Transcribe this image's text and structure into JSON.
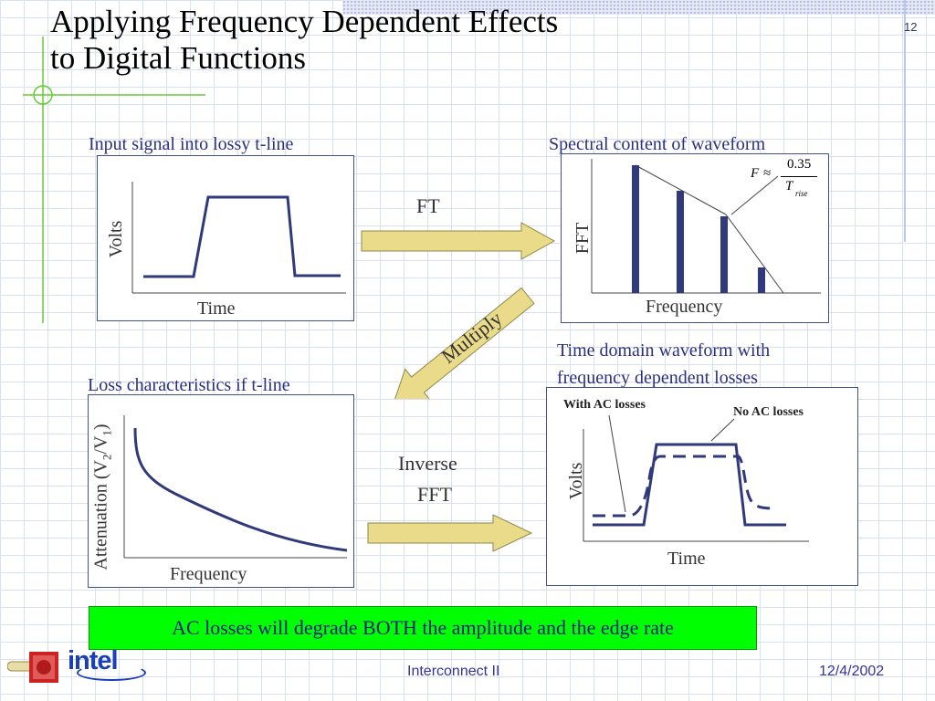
{
  "slide": {
    "title_line1": "Applying Frequency Dependent Effects",
    "title_line2": "to Digital Functions",
    "number": "12"
  },
  "panels": {
    "input": {
      "heading": "Input signal into lossy t-line",
      "xlabel": "Time",
      "ylabel": "Volts"
    },
    "spectrum": {
      "heading": "Spectral content of waveform",
      "xlabel": "Frequency",
      "ylabel": "FFT",
      "formula": {
        "lhs": "F",
        "approx": "≈",
        "numerator": "0.35",
        "denominator": "T",
        "subscript": "rise"
      },
      "bar_heights": [
        1.0,
        0.8,
        0.6,
        0.2
      ]
    },
    "loss": {
      "heading": "Loss characteristics if t-line",
      "xlabel": "Frequency",
      "ylabel_prefix": "Attenuation (V",
      "ylabel_sub1": "2",
      "ylabel_mid": "/V",
      "ylabel_sub2": "1",
      "ylabel_suffix": ")"
    },
    "output": {
      "heading_line1": "Time domain waveform with",
      "heading_line2": "frequency dependent losses",
      "xlabel": "Time",
      "ylabel": "Volts",
      "annotation_ac": "With AC losses",
      "annotation_noac": "No AC losses"
    }
  },
  "arrows": {
    "ft": "FT",
    "multiply": "Multiply",
    "inverse_line1": "Inverse",
    "inverse_line2": "FFT"
  },
  "callout": "AC losses will degrade BOTH the amplitude and the edge rate",
  "footer": {
    "center": "Interconnect II",
    "date": "12/4/2002",
    "logo_text": "intel"
  },
  "colors": {
    "waveform": "#303a7a",
    "arrow_fill": "#eadb8a",
    "arrow_stroke": "#8a8a4a",
    "callout_bg": "#00ff00",
    "decor_green": "#66cc33"
  }
}
